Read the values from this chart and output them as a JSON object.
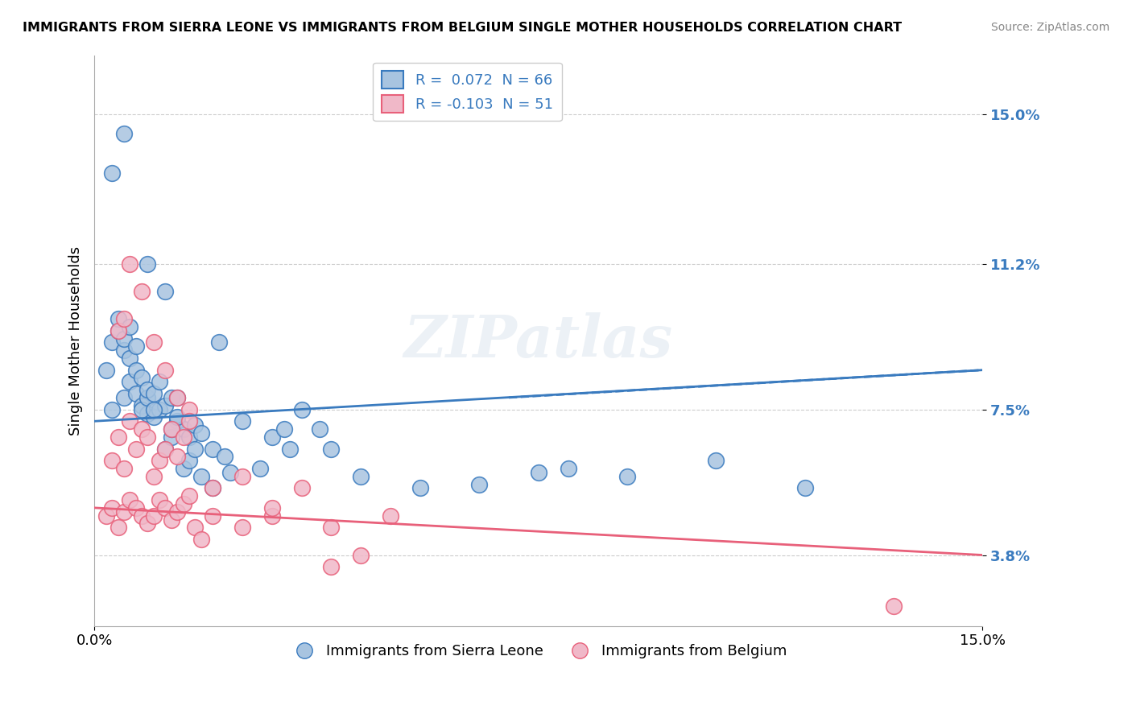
{
  "title": "IMMIGRANTS FROM SIERRA LEONE VS IMMIGRANTS FROM BELGIUM SINGLE MOTHER HOUSEHOLDS CORRELATION CHART",
  "source": "Source: ZipAtlas.com",
  "xlabel_bottom_left": "0.0%",
  "xlabel_bottom_right": "15.0%",
  "xlabel_bottom_center": "",
  "xmin": 0.0,
  "xmax": 15.0,
  "ymin": 2.0,
  "ymax": 16.5,
  "yticks": [
    3.8,
    7.5,
    11.2,
    15.0
  ],
  "ytick_labels": [
    "3.8%",
    "7.5%",
    "11.2%",
    "15.0%"
  ],
  "ylabel": "Single Mother Households",
  "legend_label1": "R =  0.072  N = 66",
  "legend_label2": "R = -0.103  N = 51",
  "color_blue": "#a8c4e0",
  "color_blue_line": "#3a7bbf",
  "color_pink": "#f0b8c8",
  "color_pink_line": "#e8607a",
  "legend_bottom_label1": "Immigrants from Sierra Leone",
  "legend_bottom_label2": "Immigrants from Belgium",
  "watermark": "ZIPatlas",
  "background_color": "#ffffff",
  "grid_color": "#cccccc",
  "blue_scatter_x": [
    0.3,
    0.5,
    0.6,
    0.7,
    0.8,
    0.9,
    1.0,
    1.1,
    1.2,
    1.3,
    1.4,
    1.5,
    1.6,
    1.7,
    1.8,
    2.0,
    2.2,
    2.5,
    3.0,
    3.2,
    3.5,
    4.0,
    0.2,
    0.3,
    0.4,
    0.4,
    0.5,
    0.5,
    0.6,
    0.6,
    0.7,
    0.7,
    0.8,
    0.8,
    0.9,
    0.9,
    1.0,
    1.0,
    1.1,
    1.2,
    1.3,
    1.3,
    1.4,
    1.5,
    1.6,
    1.7,
    1.8,
    2.0,
    2.3,
    2.8,
    3.3,
    3.8,
    4.5,
    5.5,
    6.5,
    7.5,
    8.0,
    9.0,
    10.5,
    12.0,
    0.3,
    0.5,
    0.9,
    1.2,
    1.4,
    2.1
  ],
  "blue_scatter_y": [
    7.5,
    7.8,
    8.2,
    7.9,
    7.6,
    7.4,
    7.3,
    7.5,
    7.6,
    7.8,
    7.2,
    7.0,
    6.8,
    7.1,
    6.9,
    6.5,
    6.3,
    7.2,
    6.8,
    7.0,
    7.5,
    6.5,
    8.5,
    9.2,
    9.5,
    9.8,
    9.0,
    9.3,
    8.8,
    9.6,
    8.5,
    9.1,
    7.5,
    8.3,
    7.8,
    8.0,
    7.5,
    7.9,
    8.2,
    6.5,
    6.8,
    7.0,
    7.3,
    6.0,
    6.2,
    6.5,
    5.8,
    5.5,
    5.9,
    6.0,
    6.5,
    7.0,
    5.8,
    5.5,
    5.6,
    5.9,
    6.0,
    5.8,
    6.2,
    5.5,
    13.5,
    14.5,
    11.2,
    10.5,
    7.8,
    9.2
  ],
  "pink_scatter_x": [
    0.2,
    0.3,
    0.4,
    0.5,
    0.6,
    0.7,
    0.8,
    0.9,
    1.0,
    1.1,
    1.2,
    1.3,
    1.4,
    1.5,
    1.6,
    1.7,
    1.8,
    2.0,
    2.5,
    3.0,
    3.5,
    4.0,
    4.5,
    0.3,
    0.4,
    0.5,
    0.6,
    0.7,
    0.8,
    0.9,
    1.0,
    1.1,
    1.2,
    1.3,
    1.4,
    1.5,
    1.6,
    2.0,
    2.5,
    3.0,
    4.0,
    5.0,
    0.4,
    0.5,
    0.6,
    0.8,
    1.0,
    1.2,
    1.4,
    1.6,
    13.5
  ],
  "pink_scatter_y": [
    4.8,
    5.0,
    4.5,
    4.9,
    5.2,
    5.0,
    4.8,
    4.6,
    4.8,
    5.2,
    5.0,
    4.7,
    4.9,
    5.1,
    5.3,
    4.5,
    4.2,
    4.8,
    4.5,
    4.8,
    5.5,
    3.5,
    3.8,
    6.2,
    6.8,
    6.0,
    7.2,
    6.5,
    7.0,
    6.8,
    5.8,
    6.2,
    6.5,
    7.0,
    6.3,
    6.8,
    7.5,
    5.5,
    5.8,
    5.0,
    4.5,
    4.8,
    9.5,
    9.8,
    11.2,
    10.5,
    9.2,
    8.5,
    7.8,
    7.2,
    2.5
  ],
  "blue_line_x": [
    0.0,
    15.0
  ],
  "blue_line_y": [
    7.2,
    8.5
  ],
  "pink_line_x": [
    0.0,
    15.0
  ],
  "pink_line_y": [
    5.0,
    3.8
  ]
}
